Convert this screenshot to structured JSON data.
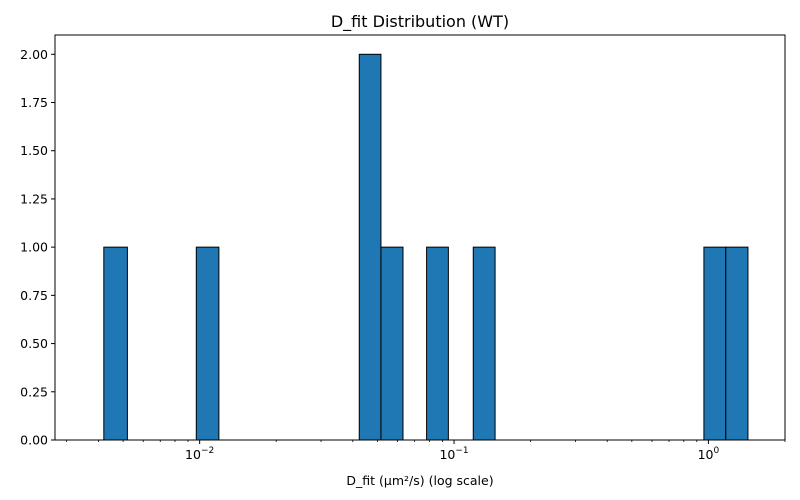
{
  "chart_data": {
    "type": "bar",
    "title": "D_fit Distribution (WT)",
    "xlabel": "D_fit (μm²/s) (log scale)",
    "ylabel": "",
    "xscale": "log",
    "xlim": [
      0.0027,
      2.0
    ],
    "ylim": [
      0,
      2.1
    ],
    "grid": false,
    "bar_color": "#1f77b4",
    "edge_color": "#000000",
    "bins": [
      {
        "x_start": 0.0042,
        "x_end": 0.0052,
        "count": 1
      },
      {
        "x_start": 0.0097,
        "x_end": 0.0119,
        "count": 1
      },
      {
        "x_start": 0.0424,
        "x_end": 0.0516,
        "count": 2
      },
      {
        "x_start": 0.0516,
        "x_end": 0.063,
        "count": 1
      },
      {
        "x_start": 0.078,
        "x_end": 0.095,
        "count": 1
      },
      {
        "x_start": 0.119,
        "x_end": 0.145,
        "count": 1
      },
      {
        "x_start": 0.96,
        "x_end": 1.17,
        "count": 1
      },
      {
        "x_start": 1.17,
        "x_end": 1.43,
        "count": 1
      }
    ],
    "empty_bin_range": [
      0.0034,
      1.43
    ],
    "yticks": [
      "0.00",
      "0.25",
      "0.50",
      "0.75",
      "1.00",
      "1.25",
      "1.50",
      "1.75",
      "2.00"
    ],
    "xticks": [
      {
        "base": "10",
        "exp": "−2"
      },
      {
        "base": "10",
        "exp": "−1"
      },
      {
        "base": "10",
        "exp": "0"
      }
    ]
  }
}
